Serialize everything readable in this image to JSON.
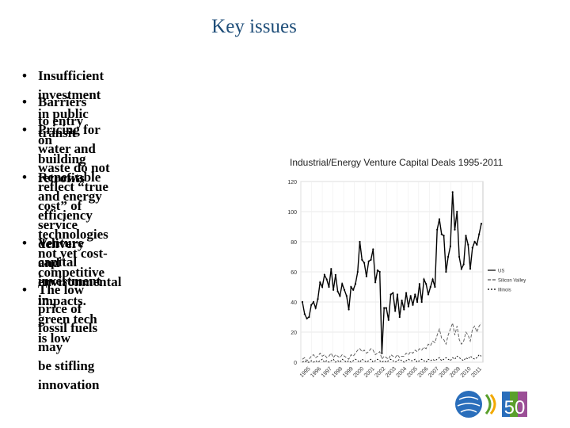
{
  "slide": {
    "title": "Key issues",
    "bullets": [
      {
        "lines": [
          "Insufficient investment in public transit"
        ]
      },
      {
        "lines": [
          "Barriers to entry on building retrofits"
        ]
      },
      {
        "lines": [
          "Pricing for water and waste do not reflect “true cost” of service delivery",
          "and environmental impacts."
        ]
      },
      {
        "lines": [
          "Renewable and energy efficiency",
          "technologies not yet cost-",
          "competitive"
        ]
      },
      {
        "lines": [
          "Venture capital investment in",
          "green tech is low"
        ]
      },
      {
        "lines": [
          "The low price of fossil fuels may",
          "be stifling innovation"
        ]
      }
    ],
    "bullet_glyph": "•",
    "title_color": "#1f4e79"
  },
  "chart_data": {
    "type": "line",
    "title": "Industrial/Energy Venture Capital Deals 1995-2011",
    "xlabel": "",
    "ylabel": "",
    "ylim": [
      0,
      120
    ],
    "yticks": [
      "0",
      "20",
      "40",
      "60",
      "80",
      "100",
      "120"
    ],
    "xticks": [
      "1995",
      "1996",
      "1997",
      "1998",
      "1999",
      "2000",
      "2001",
      "2002",
      "2003",
      "2004",
      "2005",
      "2006",
      "2007",
      "2008",
      "2009",
      "2010",
      "2011"
    ],
    "x_quarters_per_year": 4,
    "grid": true,
    "legend_position": "right",
    "series": [
      {
        "name": "US",
        "color": "#000000",
        "dash": "none",
        "values": [
          40,
          32,
          29,
          30,
          38,
          40,
          36,
          42,
          53,
          50,
          58,
          55,
          50,
          62,
          48,
          58,
          47,
          44,
          52,
          48,
          44,
          35,
          50,
          48,
          52,
          60,
          80,
          68,
          66,
          57,
          67,
          68,
          75,
          53,
          61,
          60,
          6,
          36,
          36,
          28,
          45,
          46,
          34,
          45,
          30,
          41,
          35,
          46,
          37,
          44,
          38,
          45,
          40,
          52,
          40,
          55,
          52,
          45,
          50,
          55,
          50,
          88,
          95,
          85,
          84,
          60,
          70,
          77,
          113,
          88,
          100,
          70,
          62,
          65,
          84,
          78,
          62,
          76,
          80,
          78,
          85,
          92
        ]
      },
      {
        "name": "Silicon Valley",
        "color": "#555555",
        "dash": "4,2",
        "values": [
          2,
          3,
          1,
          2,
          4,
          5,
          3,
          4,
          6,
          4,
          5,
          3,
          4,
          6,
          3,
          5,
          4,
          3,
          5,
          4,
          3,
          2,
          5,
          4,
          6,
          8,
          9,
          7,
          8,
          6,
          7,
          9,
          8,
          5,
          6,
          7,
          2,
          4,
          3,
          2,
          5,
          4,
          3,
          5,
          3,
          4,
          4,
          6,
          5,
          7,
          6,
          8,
          7,
          9,
          8,
          10,
          9,
          12,
          11,
          14,
          13,
          18,
          22,
          16,
          15,
          12,
          18,
          22,
          26,
          18,
          24,
          15,
          12,
          14,
          20,
          18,
          14,
          22,
          24,
          20,
          24,
          26
        ]
      },
      {
        "name": "Illinois",
        "color": "#000000",
        "dash": "2,2",
        "values": [
          0,
          1,
          0,
          0,
          1,
          0,
          1,
          0,
          1,
          2,
          0,
          1,
          0,
          1,
          2,
          0,
          1,
          0,
          2,
          1,
          0,
          1,
          0,
          1,
          2,
          1,
          0,
          2,
          1,
          0,
          1,
          2,
          0,
          1,
          2,
          1,
          0,
          1,
          0,
          1,
          2,
          1,
          0,
          1,
          2,
          1,
          0,
          1,
          2,
          1,
          1,
          2,
          0,
          1,
          2,
          1,
          0,
          2,
          1,
          2,
          1,
          2,
          3,
          1,
          2,
          3,
          2,
          1,
          3,
          2,
          4,
          3,
          2,
          1,
          3,
          2,
          4,
          3,
          2,
          3,
          5,
          4
        ]
      }
    ]
  },
  "logos": {
    "oecd_colors": [
      "#2a6ebb",
      "#5aa02c",
      "#f2a900"
    ],
    "anniversary_text": "50",
    "anniversary_colors": [
      "#e94e1b",
      "#2a6ebb",
      "#5aa02c",
      "#f2a900",
      "#9b4f96"
    ]
  }
}
